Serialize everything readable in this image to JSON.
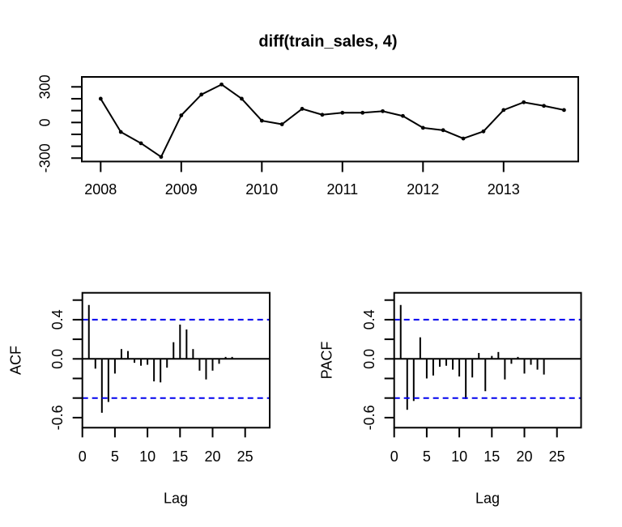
{
  "figure": {
    "background": "#ffffff",
    "foreground": "#000000"
  },
  "chart_data": [
    {
      "type": "line",
      "title": "diff(train_sales, 4)",
      "xlabel": "",
      "ylabel": "",
      "x": [
        2008.0,
        2008.25,
        2008.5,
        2008.75,
        2009.0,
        2009.25,
        2009.5,
        2009.75,
        2010.0,
        2010.25,
        2010.5,
        2010.75,
        2011.0,
        2011.25,
        2011.5,
        2011.75,
        2012.0,
        2012.25,
        2012.5,
        2012.75,
        2013.0,
        2013.25,
        2013.5,
        2013.75
      ],
      "values": [
        200,
        -80,
        -175,
        -290,
        60,
        235,
        320,
        200,
        15,
        -15,
        115,
        65,
        82,
        82,
        95,
        55,
        -45,
        -65,
        -135,
        -75,
        105,
        170,
        140,
        105
      ],
      "xticks": [
        2008,
        2009,
        2010,
        2011,
        2012,
        2013
      ],
      "xtick_labels": [
        "2008",
        "2009",
        "2010",
        "2011",
        "2012",
        "2013"
      ],
      "yticks": [
        -300,
        -200,
        -100,
        0,
        100,
        200,
        300
      ],
      "ytick_labels": [
        [
          300,
          "300"
        ],
        [
          0,
          "0"
        ],
        [
          -300,
          "-300"
        ]
      ],
      "ylim": [
        -327,
        382
      ],
      "xlim": [
        2007.77,
        2013.98
      ],
      "line_color": "#000000",
      "marker": "point"
    },
    {
      "type": "bar",
      "name": "ACF",
      "ylabel": "ACF",
      "xlabel": "Lag",
      "first_lag": 1,
      "values": [
        0.55,
        -0.1,
        -0.55,
        -0.44,
        -0.15,
        0.1,
        0.08,
        -0.04,
        -0.07,
        -0.06,
        -0.23,
        -0.24,
        -0.09,
        0.17,
        0.35,
        0.3,
        0.1,
        -0.12,
        -0.21,
        -0.12,
        -0.05,
        0.02,
        0.02
      ],
      "conf_level": 0.4,
      "conf_color": "#0000EE",
      "bar_color": "#000000",
      "xticks": [
        0,
        5,
        10,
        15,
        20,
        25
      ],
      "xtick_labels": [
        "0",
        "5",
        "10",
        "15",
        "20",
        "25"
      ],
      "yticks": [
        -0.6,
        -0.4,
        -0.2,
        0.0,
        0.2,
        0.4,
        0.6
      ],
      "ytick_labels": [
        [
          0.4,
          "0.4"
        ],
        [
          0.0,
          "0.0"
        ],
        [
          -0.6,
          "-0.6"
        ]
      ],
      "xlim": [
        0,
        28.8
      ],
      "ylim": [
        -0.7,
        0.67
      ]
    },
    {
      "type": "bar",
      "name": "PACF",
      "ylabel": "PACF",
      "xlabel": "Lag",
      "first_lag": 1,
      "values": [
        0.55,
        -0.52,
        -0.43,
        0.22,
        -0.2,
        -0.17,
        -0.08,
        -0.07,
        -0.11,
        -0.18,
        -0.41,
        -0.19,
        0.06,
        -0.33,
        0.03,
        0.07,
        -0.21,
        -0.05,
        0.02,
        -0.15,
        -0.06,
        -0.11,
        -0.16
      ],
      "conf_level": 0.4,
      "conf_color": "#0000EE",
      "bar_color": "#000000",
      "xticks": [
        0,
        5,
        10,
        15,
        20,
        25
      ],
      "xtick_labels": [
        "0",
        "5",
        "10",
        "15",
        "20",
        "25"
      ],
      "yticks": [
        -0.6,
        -0.4,
        -0.2,
        0.0,
        0.2,
        0.4,
        0.6
      ],
      "ytick_labels": [
        [
          0.4,
          "0.4"
        ],
        [
          0.0,
          "0.0"
        ],
        [
          -0.6,
          "-0.6"
        ]
      ],
      "xlim": [
        0,
        28.8
      ],
      "ylim": [
        -0.7,
        0.67
      ]
    }
  ]
}
